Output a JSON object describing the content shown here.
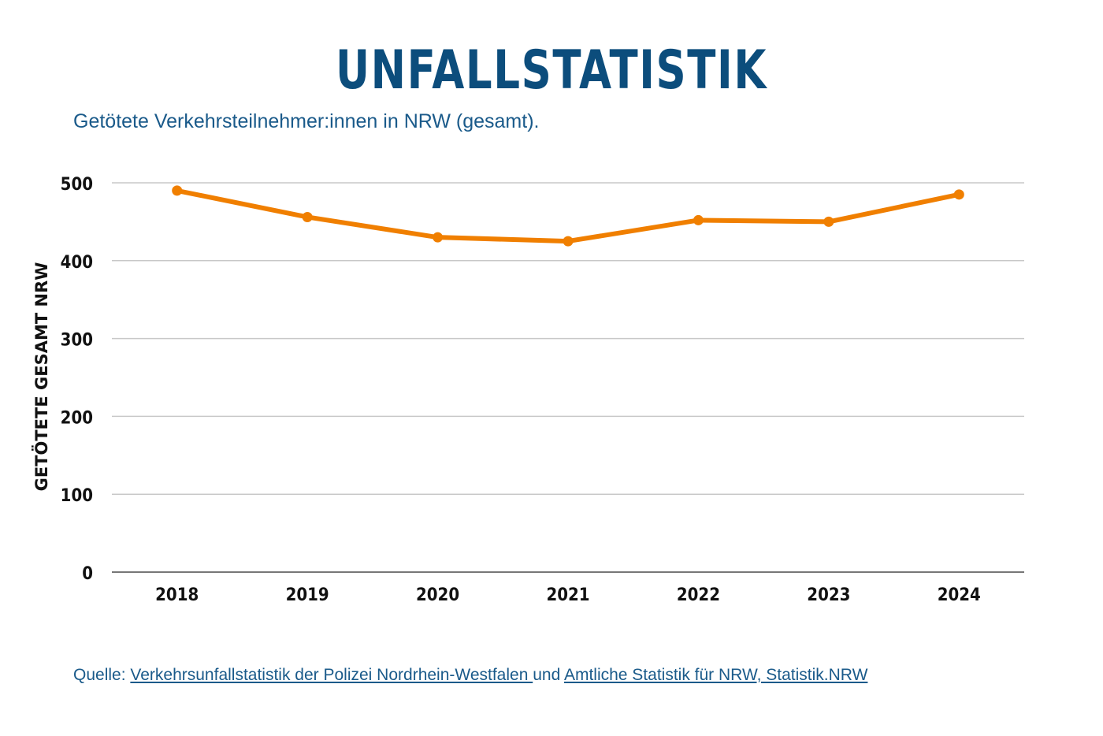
{
  "title": "UNFALLSTATISTIK",
  "subtitle": "Getötete Verkehrsteilnehmer:innen in NRW (gesamt).",
  "source": {
    "prefix": "Quelle: ",
    "link1": "Verkehrsunfallstatistik der Polizei Nordrhein-Westfalen ",
    "middle": "und ",
    "link2": "Amtliche Statistik für NRW, Statistik.NRW"
  },
  "chart_data": {
    "type": "line",
    "title": "UNFALLSTATISTIK",
    "xlabel": "",
    "ylabel": "GETÖTETE GESAMT NRW",
    "categories": [
      "2018",
      "2019",
      "2020",
      "2021",
      "2022",
      "2023",
      "2024"
    ],
    "series": [
      {
        "name": "Getötete gesamt NRW",
        "values": [
          490,
          456,
          430,
          425,
          452,
          450,
          485
        ],
        "color": "#f07f00"
      }
    ],
    "ylim": [
      0,
      500
    ],
    "yticks": [
      0,
      100,
      200,
      300,
      400,
      500
    ],
    "grid": true
  }
}
